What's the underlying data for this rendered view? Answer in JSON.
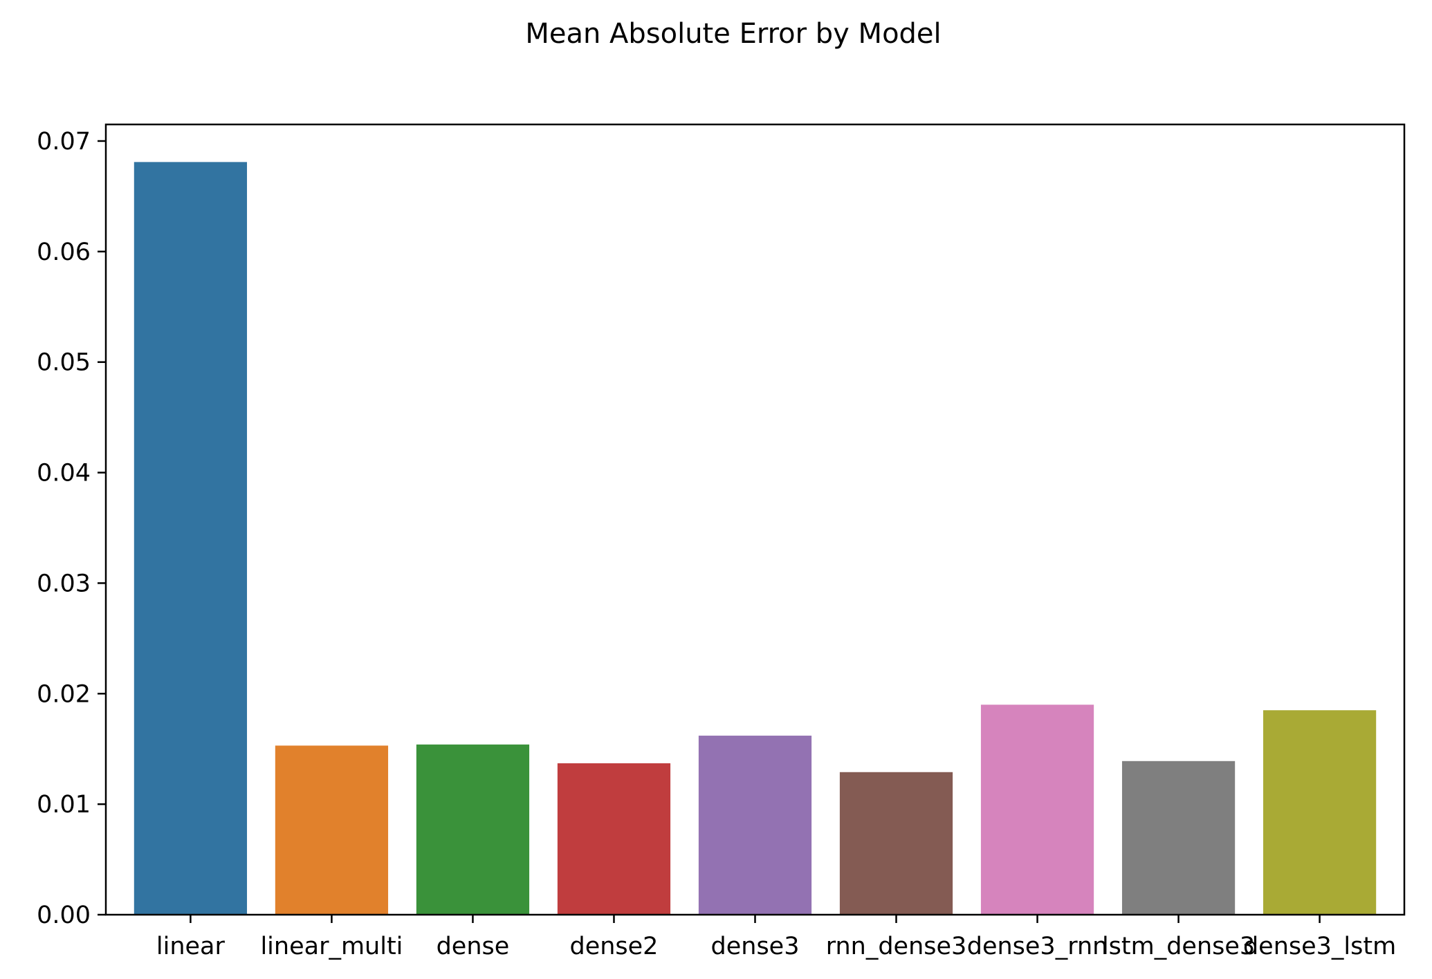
{
  "chart_data": {
    "type": "bar",
    "title": "Mean Absolute Error by Model",
    "xlabel": "",
    "ylabel": "",
    "categories": [
      "linear",
      "linear_multi",
      "dense",
      "dense2",
      "dense3",
      "rnn_dense3",
      "dense3_rnn",
      "lstm_dense3",
      "dense3_lstm"
    ],
    "values": [
      0.0681,
      0.0153,
      0.0154,
      0.0137,
      0.0162,
      0.0129,
      0.019,
      0.0139,
      0.0185
    ],
    "colors": [
      "#3274a1",
      "#e1812c",
      "#3a923a",
      "#c03d3e",
      "#9372b2",
      "#845b53",
      "#d684bd",
      "#7f7f7f",
      "#a9aa35"
    ],
    "ylim": [
      0,
      0.0715
    ],
    "yticks": [
      "0.00",
      "0.01",
      "0.02",
      "0.03",
      "0.04",
      "0.05",
      "0.06",
      "0.07"
    ],
    "ytick_values": [
      0,
      0.01,
      0.02,
      0.03,
      0.04,
      0.05,
      0.06,
      0.07
    ],
    "grid": false,
    "legend": false
  }
}
